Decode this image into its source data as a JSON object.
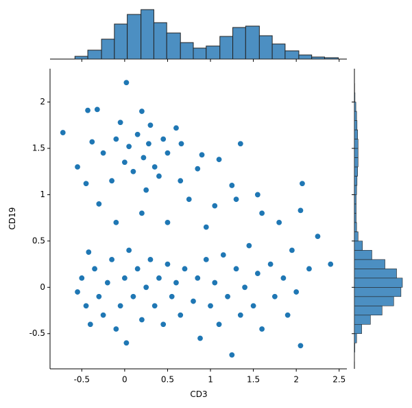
{
  "chart_data": {
    "type": "scatter",
    "x_label": "CD3",
    "y_label": "CD19",
    "color": "#1f77b4",
    "hist_color": "#4c8fc2",
    "xlim": [
      -0.87,
      2.59
    ],
    "ylim": [
      -0.88,
      2.36
    ],
    "xticks": [
      -0.5,
      0.0,
      0.5,
      1.0,
      1.5,
      2.0,
      2.5
    ],
    "yticks": [
      -0.5,
      0.0,
      0.5,
      1.0,
      1.5,
      2.0
    ],
    "x": [
      -0.72,
      -0.55,
      -0.43,
      -0.32,
      -0.38,
      -0.25,
      -0.1,
      -0.05,
      0.0,
      0.05,
      0.1,
      0.15,
      0.2,
      0.22,
      0.28,
      0.3,
      0.35,
      0.4,
      0.45,
      0.5,
      0.6,
      0.66,
      0.02,
      -0.15,
      0.25,
      -0.45,
      -0.3,
      0.65,
      0.75,
      0.85,
      0.9,
      1.05,
      1.1,
      1.25,
      1.35,
      1.3,
      1.55,
      1.6,
      1.8,
      2.05,
      2.07,
      0.5,
      0.2,
      0.95,
      -0.1,
      -0.55,
      -0.5,
      -0.45,
      -0.42,
      -0.4,
      -0.35,
      -0.3,
      -0.25,
      -0.2,
      -0.15,
      -0.1,
      -0.05,
      0.0,
      0.02,
      0.05,
      0.1,
      0.15,
      0.2,
      0.25,
      0.3,
      0.35,
      0.4,
      0.45,
      0.5,
      0.55,
      0.6,
      0.65,
      0.7,
      0.8,
      0.85,
      0.88,
      0.95,
      1.0,
      1.05,
      1.1,
      1.15,
      1.2,
      1.25,
      1.3,
      1.35,
      1.4,
      1.45,
      1.5,
      1.55,
      1.6,
      1.7,
      1.75,
      1.85,
      1.9,
      1.95,
      2.0,
      2.05,
      2.15,
      2.25,
      2.4
    ],
    "y": [
      1.67,
      1.3,
      1.91,
      1.92,
      1.57,
      1.45,
      1.6,
      1.78,
      1.35,
      1.52,
      1.25,
      1.65,
      1.9,
      1.4,
      1.55,
      1.75,
      1.3,
      1.2,
      1.6,
      1.45,
      1.72,
      1.55,
      2.21,
      1.15,
      1.05,
      1.12,
      0.9,
      1.15,
      0.95,
      1.28,
      1.43,
      0.88,
      1.38,
      1.1,
      1.55,
      0.95,
      1.0,
      0.8,
      0.7,
      0.83,
      1.12,
      0.7,
      0.8,
      0.65,
      0.7,
      -0.05,
      0.1,
      -0.2,
      0.38,
      -0.4,
      0.2,
      -0.1,
      -0.3,
      0.05,
      0.3,
      -0.45,
      -0.2,
      0.1,
      -0.6,
      0.4,
      -0.1,
      0.2,
      -0.35,
      0.0,
      0.3,
      -0.2,
      0.1,
      -0.4,
      0.25,
      -0.1,
      0.05,
      -0.3,
      0.2,
      -0.15,
      0.1,
      -0.55,
      0.3,
      -0.2,
      0.05,
      -0.4,
      0.35,
      -0.1,
      -0.73,
      0.2,
      -0.3,
      0.0,
      0.45,
      -0.2,
      0.15,
      -0.45,
      0.25,
      -0.1,
      0.1,
      -0.3,
      0.4,
      -0.05,
      -0.63,
      0.2,
      0.55,
      0.25
    ],
    "x_hist": {
      "bins": [
        -0.58,
        -0.43,
        -0.27,
        -0.12,
        0.03,
        0.19,
        0.34,
        0.49,
        0.65,
        0.8,
        0.95,
        1.11,
        1.26,
        1.41,
        1.57,
        1.72,
        1.87,
        2.03,
        2.18,
        2.33,
        2.49
      ],
      "counts": [
        20,
        65,
        145,
        255,
        325,
        360,
        265,
        190,
        120,
        80,
        95,
        165,
        230,
        240,
        170,
        110,
        60,
        30,
        15,
        10
      ]
    },
    "y_hist": {
      "bins": [
        -0.8,
        -0.7,
        -0.6,
        -0.5,
        -0.4,
        -0.3,
        -0.2,
        -0.1,
        0.0,
        0.1,
        0.2,
        0.3,
        0.4,
        0.5,
        0.6,
        0.7,
        0.8,
        0.9,
        1.0,
        1.1,
        1.2,
        1.3,
        1.4,
        1.5,
        1.6,
        1.7,
        1.8,
        1.9,
        2.0,
        2.1,
        2.2
      ],
      "counts": [
        1,
        3,
        15,
        50,
        110,
        190,
        270,
        320,
        330,
        290,
        210,
        120,
        55,
        25,
        15,
        12,
        12,
        12,
        15,
        18,
        22,
        25,
        25,
        25,
        22,
        18,
        15,
        10,
        4,
        2
      ]
    }
  }
}
